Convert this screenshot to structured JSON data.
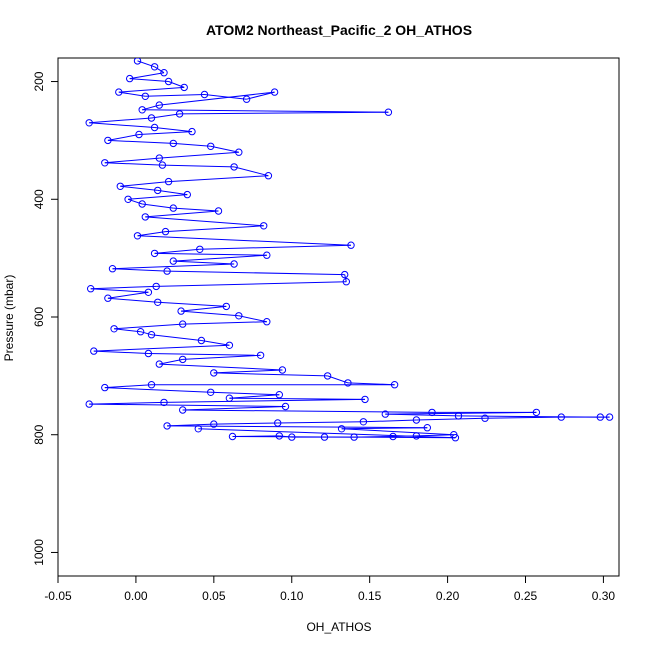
{
  "chart_data": {
    "type": "scatter",
    "title": "ATOM2 Northeast_Pacific_2 OH_ATHOS",
    "xlabel": "OH_ATHOS",
    "ylabel": "Pressure (mbar)",
    "xlim": [
      -0.05,
      0.31
    ],
    "ylim": [
      1040,
      160
    ],
    "y_reversed": true,
    "x_ticks": [
      -0.05,
      0.0,
      0.05,
      0.1,
      0.15,
      0.2,
      0.25,
      0.3
    ],
    "x_tick_labels": [
      "-0.05",
      "0.00",
      "0.05",
      "0.10",
      "0.15",
      "0.20",
      "0.25",
      "0.30"
    ],
    "y_ticks": [
      200,
      400,
      600,
      800,
      1000
    ],
    "y_tick_labels": [
      "200",
      "400",
      "600",
      "800",
      "1000"
    ],
    "grid": false,
    "marker": "open-circle",
    "connected": true,
    "color": "#0000ff",
    "series": [
      {
        "points": [
          [
            0.001,
            165
          ],
          [
            0.012,
            175
          ],
          [
            0.018,
            185
          ],
          [
            -0.004,
            195
          ],
          [
            0.021,
            200
          ],
          [
            0.031,
            210
          ],
          [
            -0.011,
            218
          ],
          [
            0.006,
            225
          ],
          [
            0.044,
            222
          ],
          [
            0.071,
            230
          ],
          [
            0.089,
            218
          ],
          [
            0.015,
            240
          ],
          [
            0.004,
            248
          ],
          [
            0.162,
            252
          ],
          [
            0.028,
            255
          ],
          [
            0.01,
            262
          ],
          [
            -0.03,
            270
          ],
          [
            0.012,
            278
          ],
          [
            0.036,
            285
          ],
          [
            0.002,
            290
          ],
          [
            -0.018,
            300
          ],
          [
            0.024,
            305
          ],
          [
            0.048,
            310
          ],
          [
            0.066,
            320
          ],
          [
            0.015,
            330
          ],
          [
            -0.02,
            338
          ],
          [
            0.017,
            342
          ],
          [
            0.063,
            345
          ],
          [
            0.085,
            360
          ],
          [
            0.021,
            370
          ],
          [
            -0.01,
            378
          ],
          [
            0.014,
            385
          ],
          [
            0.033,
            392
          ],
          [
            -0.005,
            400
          ],
          [
            0.004,
            408
          ],
          [
            0.024,
            415
          ],
          [
            0.053,
            420
          ],
          [
            0.006,
            430
          ],
          [
            0.082,
            445
          ],
          [
            0.019,
            455
          ],
          [
            0.001,
            462
          ],
          [
            0.138,
            478
          ],
          [
            0.041,
            485
          ],
          [
            0.012,
            492
          ],
          [
            0.084,
            495
          ],
          [
            0.024,
            505
          ],
          [
            0.063,
            510
          ],
          [
            -0.015,
            518
          ],
          [
            0.02,
            522
          ],
          [
            0.134,
            528
          ],
          [
            0.135,
            540
          ],
          [
            0.013,
            548
          ],
          [
            -0.029,
            552
          ],
          [
            0.008,
            558
          ],
          [
            -0.018,
            568
          ],
          [
            0.014,
            575
          ],
          [
            0.058,
            582
          ],
          [
            0.029,
            590
          ],
          [
            0.066,
            598
          ],
          [
            0.084,
            608
          ],
          [
            0.03,
            612
          ],
          [
            -0.014,
            620
          ],
          [
            0.003,
            625
          ],
          [
            0.01,
            630
          ],
          [
            0.042,
            640
          ],
          [
            0.06,
            648
          ],
          [
            -0.027,
            658
          ],
          [
            0.008,
            662
          ],
          [
            0.08,
            665
          ],
          [
            0.03,
            672
          ],
          [
            0.015,
            680
          ],
          [
            0.094,
            690
          ],
          [
            0.05,
            695
          ],
          [
            0.123,
            700
          ],
          [
            0.136,
            712
          ],
          [
            0.166,
            715
          ],
          [
            0.01,
            715
          ],
          [
            -0.02,
            720
          ],
          [
            0.048,
            728
          ],
          [
            0.092,
            732
          ],
          [
            0.06,
            738
          ],
          [
            0.147,
            740
          ],
          [
            0.018,
            745
          ],
          [
            -0.03,
            748
          ],
          [
            0.096,
            752
          ],
          [
            0.03,
            758
          ],
          [
            0.19,
            762
          ],
          [
            0.257,
            762
          ],
          [
            0.16,
            765
          ],
          [
            0.207,
            768
          ],
          [
            0.298,
            770
          ],
          [
            0.304,
            770
          ],
          [
            0.273,
            770
          ],
          [
            0.224,
            772
          ],
          [
            0.18,
            775
          ],
          [
            0.146,
            778
          ],
          [
            0.091,
            780
          ],
          [
            0.05,
            782
          ],
          [
            0.02,
            785
          ],
          [
            0.187,
            788
          ],
          [
            0.132,
            790
          ],
          [
            0.204,
            800
          ],
          [
            0.18,
            802
          ],
          [
            0.165,
            803
          ],
          [
            0.14,
            804
          ],
          [
            0.121,
            804
          ],
          [
            0.1,
            804
          ],
          [
            0.092,
            802
          ],
          [
            0.062,
            803
          ],
          [
            0.205,
            805
          ],
          [
            0.04,
            790
          ]
        ]
      }
    ]
  }
}
